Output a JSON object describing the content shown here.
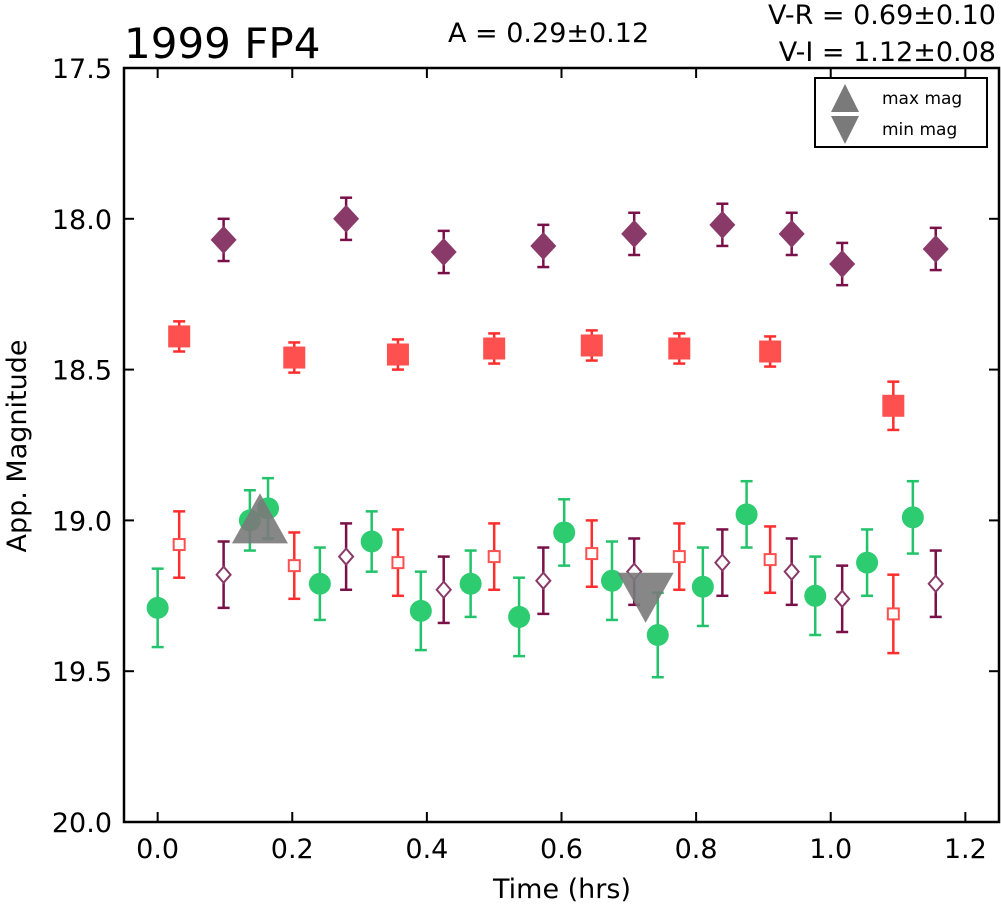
{
  "chart_data": {
    "type": "scatter",
    "title": "1999 FP4",
    "annotations": {
      "amplitude": "A  = 0.29±0.12",
      "vr": "V-R = 0.69±0.10",
      "vi": "V-I  = 1.12±0.08"
    },
    "xlabel": "Time (hrs)",
    "ylabel": "App. Magnitude",
    "xlim": [
      -0.05,
      1.25
    ],
    "ylim": [
      17.5,
      20.0
    ],
    "y_inverted": true,
    "x_ticks": [
      "0.0",
      "0.2",
      "0.4",
      "0.6",
      "0.8",
      "1.0",
      "1.2"
    ],
    "y_ticks": [
      "17.5",
      "18.0",
      "18.5",
      "19.0",
      "19.5",
      "20.0"
    ],
    "grid": false,
    "legend": {
      "placement": "top-right",
      "entries": [
        {
          "label": "max mag",
          "marker": "triangle-up"
        },
        {
          "label": "min mag",
          "marker": "triangle-down"
        }
      ]
    },
    "colors": {
      "green": "#2ecc71",
      "green_err": "#22c36a",
      "red": "#ff2d2d",
      "red_fill": "#ff5050",
      "purple": "#7a1048",
      "purple_fill": "#8a3a68",
      "marker_gray": "#7a7a7a"
    },
    "series": [
      {
        "marker": "circle-filled",
        "color": "green",
        "x": [
          0.0,
          0.137,
          0.164,
          0.241,
          0.318,
          0.391,
          0.465,
          0.537,
          0.604,
          0.675,
          0.743,
          0.81,
          0.875,
          0.977,
          1.054,
          1.122
        ],
        "y": [
          19.29,
          19.0,
          18.96,
          19.21,
          19.07,
          19.3,
          19.21,
          19.32,
          19.04,
          19.2,
          19.38,
          19.22,
          18.98,
          19.25,
          19.14,
          18.99
        ],
        "err": [
          0.13,
          0.1,
          0.1,
          0.12,
          0.1,
          0.13,
          0.11,
          0.13,
          0.11,
          0.13,
          0.14,
          0.13,
          0.11,
          0.13,
          0.11,
          0.12
        ]
      },
      {
        "marker": "square-filled",
        "color": "red",
        "x": [
          0.032,
          0.203,
          0.357,
          0.5,
          0.645,
          0.775,
          0.91,
          1.093
        ],
        "y": [
          18.39,
          18.46,
          18.45,
          18.43,
          18.42,
          18.43,
          18.44,
          18.62
        ],
        "err": [
          0.05,
          0.05,
          0.05,
          0.05,
          0.05,
          0.05,
          0.05,
          0.08
        ]
      },
      {
        "marker": "diamond-filled",
        "color": "purple",
        "x": [
          0.098,
          0.28,
          0.425,
          0.573,
          0.708,
          0.839,
          0.942,
          1.017,
          1.156
        ],
        "y": [
          18.07,
          18.0,
          18.11,
          18.09,
          18.05,
          18.02,
          18.05,
          18.15,
          18.1
        ],
        "err": [
          0.07,
          0.07,
          0.07,
          0.07,
          0.07,
          0.07,
          0.07,
          0.07,
          0.07
        ]
      },
      {
        "marker": "square-open",
        "color": "red",
        "x": [
          0.032,
          0.203,
          0.357,
          0.5,
          0.645,
          0.775,
          0.91,
          1.093
        ],
        "y": [
          19.08,
          19.15,
          19.14,
          19.12,
          19.11,
          19.12,
          19.13,
          19.31
        ],
        "err": [
          0.11,
          0.11,
          0.11,
          0.11,
          0.11,
          0.11,
          0.11,
          0.13
        ]
      },
      {
        "marker": "diamond-open",
        "color": "purple",
        "x": [
          0.098,
          0.28,
          0.425,
          0.573,
          0.708,
          0.839,
          0.942,
          1.017,
          1.156
        ],
        "y": [
          19.18,
          19.12,
          19.23,
          19.2,
          19.17,
          19.14,
          19.17,
          19.26,
          19.21
        ],
        "err": [
          0.11,
          0.11,
          0.11,
          0.11,
          0.11,
          0.11,
          0.11,
          0.11,
          0.11
        ]
      }
    ],
    "extrema": [
      {
        "label": "max mag",
        "marker": "triangle-up",
        "x": 0.152,
        "y": 19.0
      },
      {
        "label": "min mag",
        "marker": "triangle-down",
        "x": 0.725,
        "y": 19.25
      }
    ]
  }
}
